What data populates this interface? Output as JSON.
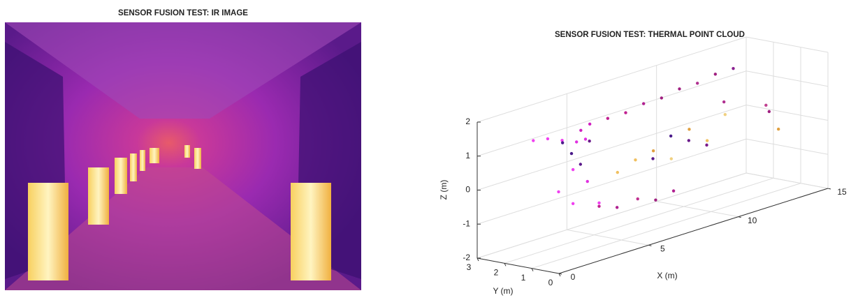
{
  "chart_data": [
    {
      "type": "image",
      "title": "SENSOR FUSION TEST: IR IMAGE"
    },
    {
      "type": "scatter3d",
      "title": "SENSOR FUSION TEST: THERMAL POINT CLOUD",
      "xlabel": "X (m)",
      "ylabel": "Y (m)",
      "zlabel": "Z (m)",
      "xlim": [
        0,
        15
      ],
      "ylim": [
        0,
        3
      ],
      "zlim": [
        -2,
        2
      ],
      "xticks": [
        0,
        5,
        10,
        15
      ],
      "yticks": [
        0,
        1,
        2,
        3
      ],
      "zticks": [
        -2,
        -1,
        0,
        1,
        2
      ],
      "grid": true,
      "x": [
        1,
        1.5,
        2,
        2.5,
        1.5,
        2,
        2,
        2.5,
        3,
        3,
        3.5,
        4,
        5,
        6,
        7,
        8,
        9,
        10,
        11,
        12,
        4,
        4.5,
        5,
        5.5,
        6,
        7,
        8,
        9,
        6,
        7,
        8,
        9,
        10,
        11,
        12,
        13,
        13,
        14,
        12,
        3,
        4,
        5,
        6,
        7
      ],
      "y": [
        1.6,
        1.4,
        1.2,
        1.0,
        1.0,
        0.8,
        0.8,
        0.6,
        1.0,
        0.5,
        1.5,
        1.5,
        1.5,
        1.5,
        1.5,
        1.5,
        1.5,
        1.5,
        1.5,
        1.5,
        2.5,
        2.5,
        2.5,
        2.5,
        0.5,
        0.5,
        0.5,
        0.5,
        1.8,
        1.8,
        1.8,
        1.8,
        1.8,
        1.8,
        1.8,
        2.5,
        0.5,
        1.5,
        0.3,
        0.5,
        0.5,
        0.4,
        0.4,
        0.4
      ],
      "z": [
        1.5,
        1.5,
        1.4,
        1.3,
        0.0,
        0.6,
        -0.4,
        0.2,
        1.3,
        -0.5,
        1.4,
        1.5,
        1.5,
        1.5,
        1.6,
        1.6,
        1.7,
        1.7,
        1.8,
        1.8,
        0.8,
        0.4,
        0.0,
        0.6,
        0.3,
        0.8,
        0.5,
        0.2,
        -0.3,
        -0.1,
        0.0,
        -0.4,
        0.3,
        -0.2,
        0.4,
        0.5,
        0.0,
        0.2,
        0.9,
        -0.6,
        -0.8,
        -0.7,
        -0.9,
        -0.8
      ],
      "colors": [
        "#f040f0",
        "#f040f0",
        "#f040f0",
        "#e030e0",
        "#f040f0",
        "#f040f0",
        "#f040f0",
        "#e030e0",
        "#e030e0",
        "#f040f0",
        "#d020c0",
        "#d020c0",
        "#c02090",
        "#c02090",
        "#b02090",
        "#a02080",
        "#a02080",
        "#b03090",
        "#a02080",
        "#8a2090",
        "#4a1a8a",
        "#4a1a8a",
        "#5a1a8a",
        "#6a1a8a",
        "#5a1a8a",
        "#4a1a8a",
        "#6a1a8a",
        "#7a1a8a",
        "#f0c060",
        "#f0c060",
        "#e0a040",
        "#f0d080",
        "#e0a040",
        "#f0c060",
        "#f0d080",
        "#b03090",
        "#e0a040",
        "#a02080",
        "#c04090",
        "#c02090",
        "#b02090",
        "#c03090",
        "#a02080",
        "#b02090"
      ]
    }
  ]
}
